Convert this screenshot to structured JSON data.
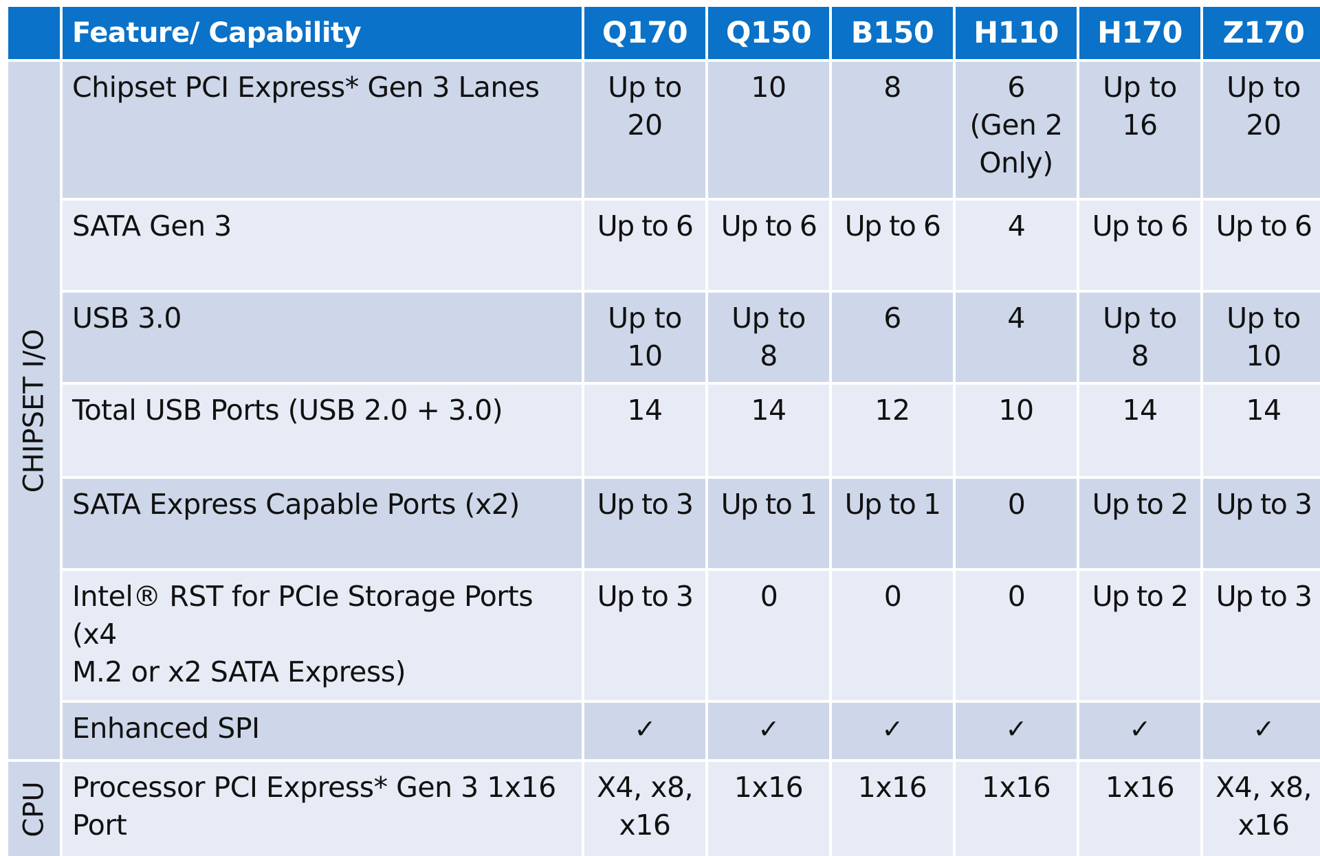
{
  "header": {
    "feature_label": "Feature/ Capability",
    "chipsets": [
      "Q170",
      "Q150",
      "B150",
      "H110",
      "H170",
      "Z170"
    ]
  },
  "groups": {
    "chipset_io": "CHIPSET I/O",
    "cpu": "CPU"
  },
  "rows": [
    {
      "label": "Chipset PCI Express* Gen 3 Lanes",
      "values": [
        "Up to\n20",
        "10",
        "8",
        "6\n(Gen 2\nOnly)",
        "Up to\n16",
        "Up to\n20"
      ]
    },
    {
      "label": "SATA Gen 3",
      "values": [
        "Up to 6",
        "Up to 6",
        "Up to 6",
        "4",
        "Up to 6",
        "Up to 6"
      ]
    },
    {
      "label": "USB 3.0",
      "values": [
        "Up to\n10",
        "Up to\n8",
        "6",
        "4",
        "Up to\n8",
        "Up to\n10"
      ]
    },
    {
      "label": "Total USB Ports (USB 2.0 + 3.0)",
      "values": [
        "14",
        "14",
        "12",
        "10",
        "14",
        "14"
      ]
    },
    {
      "label": "SATA Express Capable Ports (x2)",
      "values": [
        "Up to 3",
        "Up to 1",
        "Up to 1",
        "0",
        "Up to 2",
        "Up to 3"
      ]
    },
    {
      "label": "Intel® RST for PCIe Storage Ports (x4\nM.2 or x2 SATA Express)",
      "values": [
        "Up to 3",
        "0",
        "0",
        "0",
        "Up to 2",
        "Up to 3"
      ]
    },
    {
      "label": "Enhanced SPI",
      "values": [
        "✓",
        "✓",
        "✓",
        "✓",
        "✓",
        "✓"
      ]
    },
    {
      "label": "Processor PCI Express* Gen 3 1x16\nPort",
      "values": [
        "X4, x8,\nx16",
        "1x16",
        "1x16",
        "1x16",
        "1x16",
        "X4, x8,\nx16"
      ]
    }
  ],
  "colors": {
    "header_bg": "#0a72c8",
    "row_dark": "#cdd7e9",
    "row_light": "#e7ebf5"
  }
}
